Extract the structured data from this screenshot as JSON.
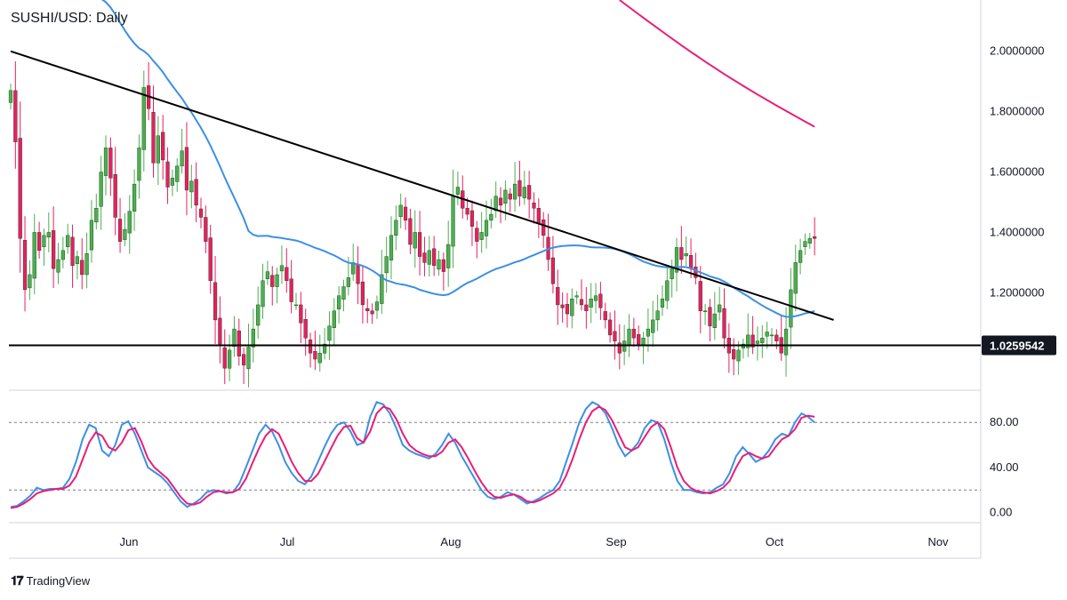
{
  "title": "SUSHI/USD: Daily",
  "brand": "TradingView",
  "colors": {
    "up": "#4caf50",
    "down": "#e91e63",
    "ma_fast": "#3d8fe6",
    "ma_slow": "#e91e79",
    "stoch_k": "#3d8fe6",
    "stoch_d": "#e91e79",
    "line": "#000000"
  },
  "chart_data": [
    {
      "type": "candlestick",
      "symbol": "SUSHI/USD",
      "timeframe": "Daily",
      "x_ticks": [
        "Jun",
        "Jul",
        "Aug",
        "Sep",
        "Oct",
        "Nov"
      ],
      "y_ticks": [
        "1.2000000",
        "1.4000000",
        "1.6000000",
        "1.8000000",
        "2.0000000"
      ],
      "ylim": [
        0.88,
        2.17
      ],
      "horizontal_line_value": "1.0259542",
      "trendline": [
        {
          "day": 0,
          "price": 2.0
        },
        {
          "day": 173,
          "price": 1.11
        }
      ],
      "close": [
        1.87,
        1.7,
        1.38,
        1.21,
        1.26,
        1.4,
        1.34,
        1.39,
        1.4,
        1.28,
        1.31,
        1.34,
        1.39,
        1.29,
        1.32,
        1.26,
        1.33,
        1.44,
        1.48,
        1.6,
        1.68,
        1.58,
        1.45,
        1.37,
        1.41,
        1.47,
        1.56,
        1.68,
        1.88,
        1.81,
        1.63,
        1.72,
        1.64,
        1.55,
        1.58,
        1.62,
        1.67,
        1.54,
        1.57,
        1.49,
        1.45,
        1.37,
        1.24,
        1.11,
        1.03,
        0.95,
        1.01,
        1.08,
        0.99,
        0.96,
        1.02,
        1.08,
        1.16,
        1.24,
        1.27,
        1.22,
        1.26,
        1.29,
        1.24,
        1.17,
        1.16,
        1.1,
        1.05,
        1.0,
        0.98,
        1.0,
        1.03,
        1.09,
        1.14,
        1.19,
        1.22,
        1.25,
        1.3,
        1.23,
        1.16,
        1.14,
        1.13,
        1.17,
        1.26,
        1.32,
        1.39,
        1.44,
        1.49,
        1.44,
        1.36,
        1.4,
        1.32,
        1.3,
        1.34,
        1.29,
        1.31,
        1.27,
        1.36,
        1.52,
        1.55,
        1.48,
        1.46,
        1.42,
        1.37,
        1.4,
        1.44,
        1.46,
        1.52,
        1.49,
        1.54,
        1.51,
        1.56,
        1.52,
        1.55,
        1.51,
        1.48,
        1.43,
        1.39,
        1.31,
        1.23,
        1.16,
        1.15,
        1.13,
        1.18,
        1.19,
        1.16,
        1.14,
        1.18,
        1.19,
        1.15,
        1.11,
        1.06,
        1.04,
        1.0,
        1.04,
        1.08,
        1.05,
        1.03,
        1.05,
        1.08,
        1.11,
        1.14,
        1.18,
        1.24,
        1.28,
        1.35,
        1.31,
        1.33,
        1.28,
        1.25,
        1.14,
        1.14,
        1.09,
        1.13,
        1.16,
        1.05,
        1.0,
        0.98,
        1.01,
        1.03,
        1.06,
        1.02,
        1.04,
        1.05,
        1.07,
        1.06,
        1.04,
        1.0,
        1.08,
        1.21,
        1.3,
        1.34,
        1.37,
        1.38,
        1.38
      ]
    },
    {
      "type": "line",
      "name": "stochastic",
      "y_ticks": [
        "0.00",
        "40.00",
        "80.00"
      ],
      "ylim": [
        -9,
        107
      ],
      "dashed_levels": [
        80,
        20
      ],
      "k": [
        5,
        6,
        10,
        15,
        22,
        20,
        21,
        21,
        22,
        30,
        45,
        65,
        78,
        75,
        55,
        50,
        60,
        78,
        81,
        70,
        55,
        40,
        36,
        32,
        26,
        18,
        10,
        5,
        8,
        12,
        18,
        20,
        19,
        17,
        18,
        26,
        40,
        55,
        70,
        78,
        72,
        60,
        45,
        35,
        28,
        25,
        32,
        45,
        58,
        70,
        78,
        80,
        72,
        60,
        62,
        85,
        98,
        96,
        88,
        75,
        60,
        55,
        52,
        50,
        48,
        52,
        60,
        70,
        62,
        50,
        40,
        30,
        20,
        14,
        12,
        14,
        18,
        16,
        12,
        8,
        10,
        13,
        17,
        20,
        28,
        45,
        62,
        80,
        92,
        98,
        95,
        88,
        75,
        60,
        50,
        55,
        62,
        75,
        82,
        80,
        65,
        45,
        28,
        20,
        20,
        18,
        17,
        18,
        22,
        25,
        35,
        50,
        58,
        52,
        45,
        48,
        55,
        65,
        70,
        68,
        80,
        88,
        85,
        80
      ],
      "d": [
        4,
        5,
        8,
        12,
        17,
        19,
        20,
        21,
        21,
        24,
        32,
        47,
        62,
        71,
        68,
        58,
        55,
        62,
        73,
        75,
        63,
        48,
        40,
        35,
        30,
        22,
        14,
        8,
        7,
        9,
        14,
        18,
        19,
        18,
        18,
        21,
        30,
        44,
        57,
        68,
        74,
        70,
        58,
        45,
        35,
        28,
        28,
        34,
        45,
        57,
        68,
        76,
        77,
        66,
        62,
        72,
        88,
        94,
        92,
        83,
        70,
        60,
        55,
        52,
        50,
        50,
        54,
        62,
        65,
        58,
        48,
        37,
        27,
        19,
        14,
        13,
        15,
        16,
        14,
        10,
        9,
        11,
        14,
        17,
        22,
        33,
        48,
        65,
        80,
        90,
        94,
        91,
        82,
        70,
        58,
        55,
        58,
        67,
        76,
        80,
        74,
        58,
        40,
        28,
        22,
        19,
        18,
        17,
        19,
        22,
        28,
        40,
        50,
        53,
        50,
        48,
        50,
        58,
        65,
        68,
        74,
        84,
        86,
        85
      ]
    }
  ]
}
